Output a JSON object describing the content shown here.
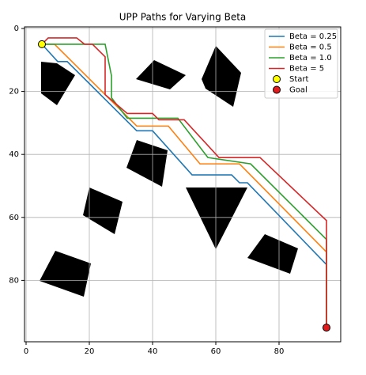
{
  "chart_data": {
    "type": "line",
    "title": "UPP Paths for Varying Beta",
    "xlim": [
      -0.5,
      99.5
    ],
    "ylim": [
      99.5,
      -0.5
    ],
    "xticks": [
      0,
      20,
      40,
      60,
      80
    ],
    "yticks": [
      0,
      20,
      40,
      60,
      80
    ],
    "grid": true,
    "legend": "upper right",
    "series": [
      {
        "name": "Beta = 0.25",
        "color": "#1f77b4",
        "x": [
          5,
          10,
          13,
          35,
          40,
          52.5,
          65,
          67.5,
          70,
          95,
          95
        ],
        "values": [
          5,
          10.5,
          10.5,
          32.5,
          32.5,
          46.5,
          46.5,
          49,
          49,
          75,
          95
        ]
      },
      {
        "name": "Beta = 0.5",
        "color": "#ff7f0e",
        "x": [
          5,
          9,
          35,
          45,
          55,
          67.5,
          95,
          95
        ],
        "values": [
          5,
          5,
          31,
          31,
          43,
          43,
          71,
          95
        ]
      },
      {
        "name": "Beta = 1.0",
        "color": "#2ca02c",
        "x": [
          5,
          25,
          27,
          27,
          32,
          48,
          57.5,
          71,
          95,
          95
        ],
        "values": [
          5,
          5,
          15,
          22,
          28.5,
          28.5,
          41,
          43,
          67,
          95
        ]
      },
      {
        "name": "Beta = 5",
        "color": "#d62728",
        "x": [
          5,
          7,
          16,
          18.5,
          21,
          25,
          25,
          32,
          40,
          42,
          50,
          61,
          74,
          95,
          95
        ],
        "values": [
          5,
          3,
          3,
          5,
          5,
          9,
          21,
          27,
          27,
          29,
          29,
          41,
          41,
          61,
          95
        ]
      }
    ],
    "markers": [
      {
        "name": "Start",
        "color": "#ffff00",
        "x": [
          5
        ],
        "values": [
          5
        ]
      },
      {
        "name": "Goal",
        "color": "#e31a1c",
        "x": [
          95
        ],
        "values": [
          95
        ]
      }
    ]
  }
}
